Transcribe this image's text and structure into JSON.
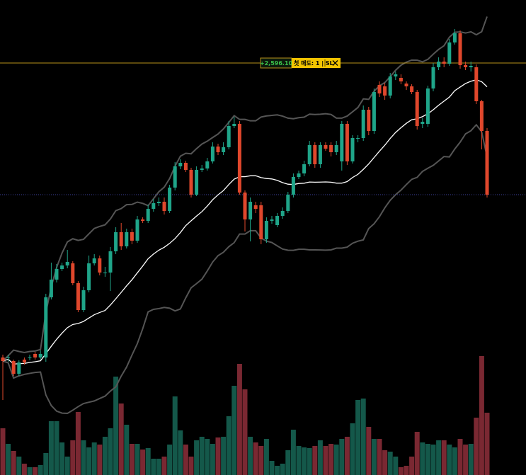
{
  "chart_data": {
    "type": "candlestick",
    "ylim": [
      0,
      671
    ],
    "volume_lim": [
      0,
      671
    ],
    "up_color": "#1fa589",
    "down_color": "#e0472c",
    "volume_up_color": "#14584a",
    "volume_down_color": "#7a2832",
    "band_color": "#555555",
    "mid_color": "#ffffff",
    "band_period": 20,
    "open": [
      166,
      166,
      161,
      143,
      163,
      166,
      171,
      166,
      166,
      251,
      276,
      291,
      296,
      299,
      271,
      233,
      261,
      299,
      306,
      286,
      286,
      316,
      343,
      323,
      343,
      331,
      361,
      359,
      376,
      384,
      386,
      373,
      406,
      436,
      441,
      431,
      396,
      431,
      433,
      443,
      464,
      456,
      463,
      493,
      496,
      399,
      361,
      381,
      381,
      333,
      359,
      353,
      366,
      373,
      396,
      421,
      426,
      439,
      466,
      439,
      466,
      466,
      456,
      443,
      496,
      443,
      476,
      476,
      516,
      486,
      551,
      549,
      536,
      563,
      561,
      553,
      549,
      541,
      496,
      496,
      546,
      576,
      584,
      581,
      611,
      624,
      579,
      576,
      576,
      528,
      486
    ],
    "high": [
      170,
      170,
      163,
      162,
      166,
      170,
      174,
      176,
      256,
      300,
      298,
      300,
      318,
      302,
      274,
      266,
      310,
      312,
      310,
      294,
      322,
      350,
      356,
      348,
      348,
      366,
      364,
      382,
      390,
      392,
      392,
      410,
      442,
      446,
      444,
      434,
      436,
      438,
      448,
      470,
      468,
      470,
      500,
      506,
      500,
      402,
      392,
      386,
      386,
      364,
      366,
      370,
      378,
      400,
      426,
      430,
      444,
      472,
      470,
      470,
      470,
      470,
      472,
      500,
      500,
      480,
      480,
      522,
      520,
      546,
      556,
      554,
      568,
      570,
      566,
      556,
      552,
      544,
      504,
      550,
      582,
      590,
      590,
      616,
      630,
      628,
      584,
      584,
      580,
      530,
      490
    ],
    "low": [
      106,
      160,
      140,
      140,
      156,
      162,
      163,
      163,
      160,
      248,
      272,
      288,
      292,
      268,
      230,
      230,
      258,
      296,
      282,
      280,
      260,
      312,
      318,
      320,
      326,
      328,
      356,
      356,
      372,
      380,
      368,
      370,
      402,
      432,
      428,
      392,
      394,
      428,
      430,
      440,
      452,
      452,
      460,
      490,
      396,
      344,
      330,
      370,
      326,
      328,
      355,
      350,
      362,
      370,
      392,
      418,
      422,
      436,
      434,
      434,
      458,
      450,
      452,
      430,
      438,
      440,
      470,
      472,
      480,
      482,
      534,
      530,
      532,
      558,
      552,
      544,
      538,
      488,
      490,
      492,
      542,
      572,
      576,
      578,
      608,
      574,
      572,
      570,
      524,
      460,
      392
    ],
    "close": [
      161,
      166,
      143,
      159,
      159,
      166,
      166,
      171,
      251,
      276,
      291,
      296,
      301,
      271,
      233,
      261,
      299,
      306,
      286,
      286,
      316,
      343,
      323,
      343,
      331,
      361,
      359,
      376,
      384,
      386,
      373,
      406,
      436,
      441,
      431,
      396,
      431,
      433,
      443,
      464,
      456,
      463,
      493,
      496,
      399,
      361,
      386,
      376,
      333,
      359,
      361,
      366,
      373,
      396,
      421,
      426,
      439,
      466,
      439,
      466,
      461,
      456,
      466,
      496,
      443,
      476,
      476,
      516,
      486,
      541,
      539,
      536,
      563,
      566,
      556,
      549,
      541,
      493,
      499,
      546,
      576,
      584,
      581,
      611,
      624,
      579,
      576,
      578,
      528,
      486,
      396
    ],
    "volume": [
      66,
      44,
      34,
      26,
      16,
      11,
      11,
      14,
      31,
      76,
      76,
      46,
      26,
      49,
      89,
      49,
      39,
      46,
      43,
      54,
      66,
      139,
      101,
      71,
      44,
      44,
      36,
      38,
      23,
      23,
      26,
      43,
      111,
      63,
      43,
      26,
      49,
      54,
      51,
      44,
      53,
      54,
      83,
      126,
      157,
      121,
      54,
      46,
      41,
      51,
      20,
      13,
      16,
      35,
      64,
      41,
      39,
      38,
      41,
      49,
      41,
      44,
      43,
      51,
      54,
      73,
      106,
      108,
      68,
      51,
      51,
      35,
      33,
      26,
      11,
      13,
      26,
      61,
      46,
      44,
      43,
      49,
      49,
      43,
      39,
      51,
      43,
      44,
      81,
      168,
      88
    ],
    "order_line": {
      "value": 582,
      "color": "#b8921a",
      "label": "+2,596.10",
      "tag": "첫 매도: 1 | SL"
    },
    "price_line": {
      "value": 396,
      "color": "#3b3f9a"
    }
  }
}
